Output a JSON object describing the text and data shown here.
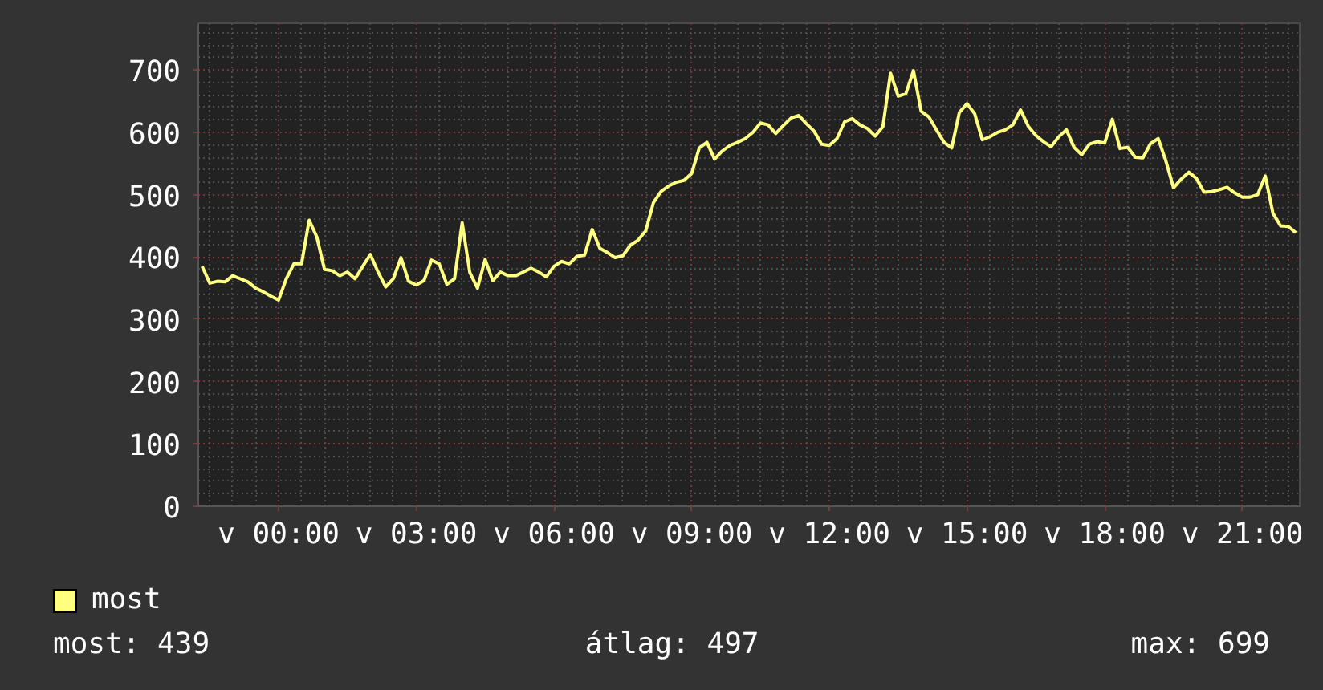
{
  "chart_data": {
    "type": "line",
    "categories": [
      null,
      null,
      null,
      null,
      null,
      null,
      null,
      null,
      null,
      null,
      "v 00:00",
      null,
      null,
      null,
      null,
      null,
      null,
      null,
      null,
      null,
      null,
      null,
      null,
      null,
      null,
      null,
      null,
      null,
      "v 03:00",
      null,
      null,
      null,
      null,
      null,
      null,
      null,
      null,
      null,
      null,
      null,
      null,
      null,
      null,
      null,
      null,
      null,
      "v 06:00",
      null,
      null,
      null,
      null,
      null,
      null,
      null,
      null,
      null,
      null,
      null,
      null,
      null,
      null,
      null,
      null,
      null,
      "v 09:00",
      null,
      null,
      null,
      null,
      null,
      null,
      null,
      null,
      null,
      null,
      null,
      null,
      null,
      null,
      null,
      null,
      null,
      "v 12:00",
      null,
      null,
      null,
      null,
      null,
      null,
      null,
      null,
      null,
      null,
      null,
      null,
      null,
      null,
      null,
      null,
      null,
      "v 15:00",
      null,
      null,
      null,
      null,
      null,
      null,
      null,
      null,
      null,
      null,
      null,
      null,
      null,
      null,
      null,
      null,
      null,
      "v 18:00",
      null,
      null,
      null,
      null,
      null,
      null,
      null,
      null,
      null,
      null,
      null,
      null,
      null,
      null,
      null,
      null,
      null,
      "v 21:00",
      null,
      null,
      null,
      null,
      null,
      null,
      null
    ],
    "series": [
      {
        "name": "most",
        "color": "#ffff80",
        "values": [
          385,
          358,
          361,
          360,
          370,
          365,
          360,
          350,
          344,
          337,
          331,
          365,
          389,
          389,
          459,
          432,
          380,
          378,
          370,
          376,
          365,
          385,
          404,
          376,
          352,
          365,
          399,
          361,
          355,
          362,
          395,
          389,
          356,
          365,
          455,
          375,
          350,
          396,
          362,
          376,
          370,
          370,
          376,
          382,
          376,
          368,
          385,
          393,
          389,
          401,
          403,
          444,
          414,
          407,
          399,
          402,
          419,
          427,
          442,
          487,
          505,
          514,
          520,
          523,
          534,
          575,
          584,
          557,
          570,
          579,
          584,
          590,
          600,
          615,
          612,
          598,
          611,
          623,
          627,
          614,
          602,
          581,
          579,
          590,
          617,
          622,
          612,
          606,
          594,
          609,
          695,
          658,
          662,
          699,
          634,
          625,
          604,
          584,
          575,
          632,
          646,
          630,
          588,
          593,
          600,
          604,
          612,
          636,
          610,
          595,
          585,
          577,
          593,
          604,
          576,
          564,
          581,
          585,
          583,
          621,
          574,
          576,
          560,
          559,
          582,
          590,
          554,
          511,
          525,
          536,
          526,
          504,
          505,
          508,
          512,
          503,
          496,
          496,
          500,
          530,
          470,
          450,
          449,
          439
        ]
      }
    ],
    "ylim": [
      0,
      775
    ],
    "yticks": [
      0,
      100,
      200,
      300,
      400,
      500,
      600,
      700
    ],
    "grid": true,
    "legend": "bottom left",
    "annotations": [
      "most: 439",
      "átlag: 497",
      "max: 699"
    ]
  }
}
